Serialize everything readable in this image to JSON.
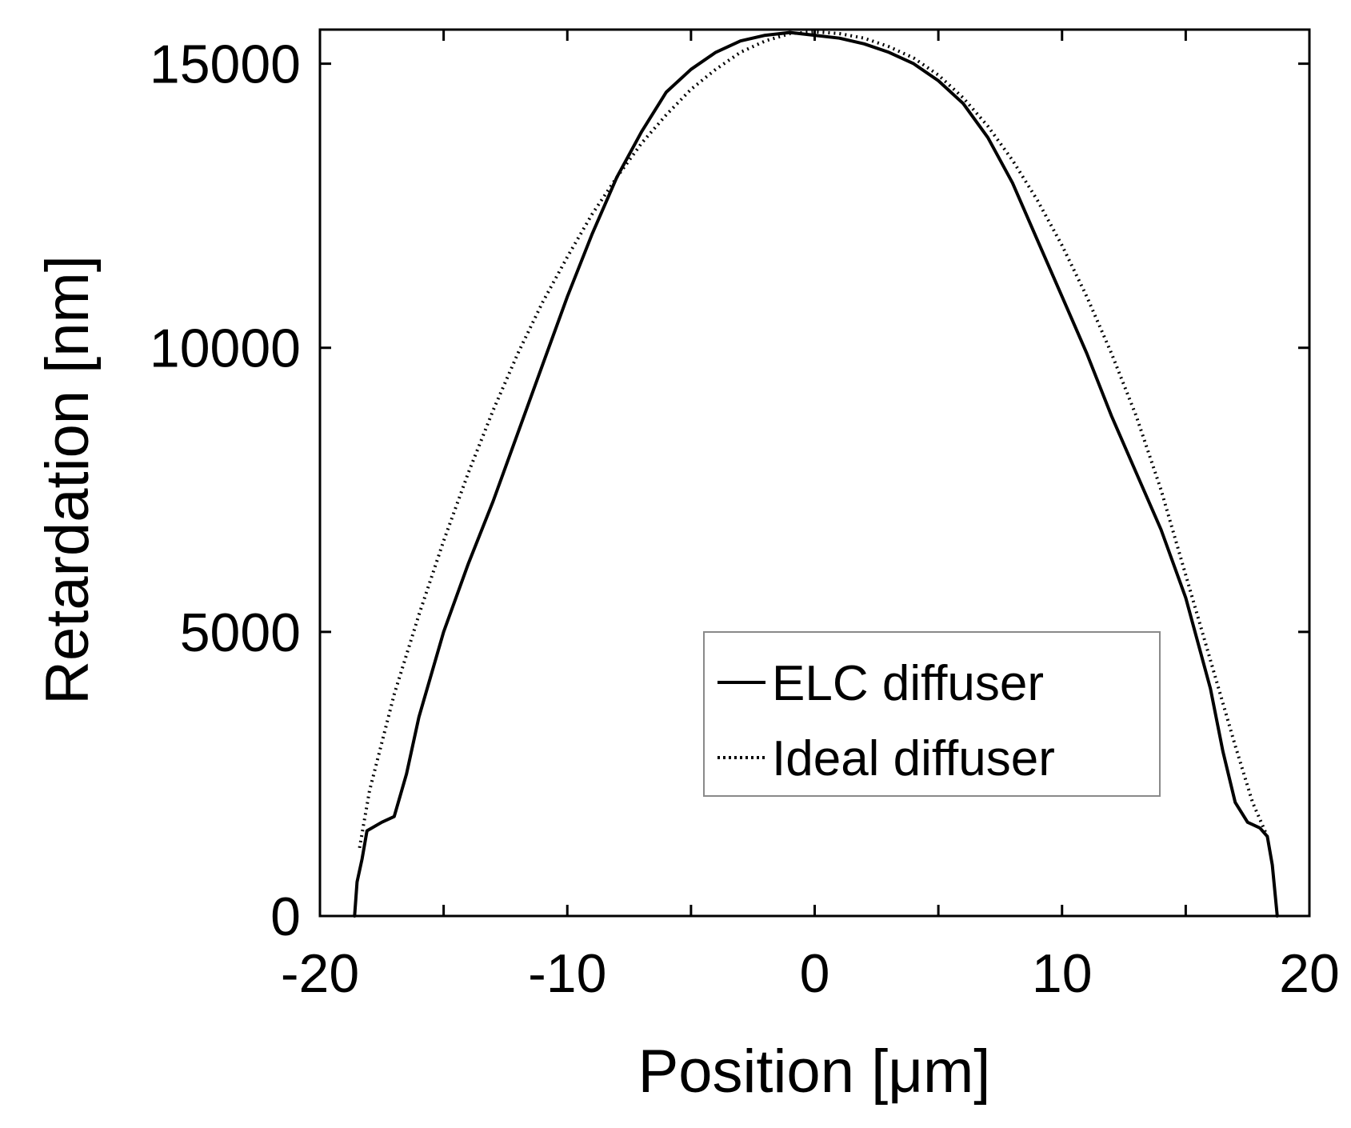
{
  "chart_data": {
    "type": "line",
    "xlabel": "Position [μm]",
    "ylabel": "Retardation [nm]",
    "xlim": [
      -20,
      20
    ],
    "ylim": [
      0,
      15600
    ],
    "xticks": [
      -20,
      -10,
      0,
      10,
      20
    ],
    "xtick_labels": [
      "-20",
      "-10",
      "0",
      "10",
      "20"
    ],
    "yticks": [
      0,
      5000,
      10000,
      15000
    ],
    "ytick_labels": [
      "0",
      "5000",
      "10000",
      "15000"
    ],
    "grid": false,
    "legend_position": "lower-right",
    "series": [
      {
        "name": "ELC diffuser",
        "style": "solid",
        "color": "#000000",
        "points": [
          [
            -18.6,
            0
          ],
          [
            -18.5,
            600
          ],
          [
            -18.3,
            1000
          ],
          [
            -18.1,
            1500
          ],
          [
            -17.5,
            1650
          ],
          [
            -17.0,
            1750
          ],
          [
            -16.5,
            2500
          ],
          [
            -16.0,
            3500
          ],
          [
            -15.0,
            5000
          ],
          [
            -14.0,
            6200
          ],
          [
            -13.0,
            7300
          ],
          [
            -12.0,
            8500
          ],
          [
            -11.0,
            9700
          ],
          [
            -10.0,
            10900
          ],
          [
            -9.0,
            12000
          ],
          [
            -8.0,
            13000
          ],
          [
            -7.0,
            13800
          ],
          [
            -6.0,
            14500
          ],
          [
            -5.0,
            14900
          ],
          [
            -4.0,
            15200
          ],
          [
            -3.0,
            15400
          ],
          [
            -2.0,
            15500
          ],
          [
            -1.0,
            15550
          ],
          [
            0.0,
            15500
          ],
          [
            1.0,
            15450
          ],
          [
            2.0,
            15350
          ],
          [
            3.0,
            15200
          ],
          [
            4.0,
            15000
          ],
          [
            5.0,
            14700
          ],
          [
            6.0,
            14300
          ],
          [
            7.0,
            13700
          ],
          [
            8.0,
            12900
          ],
          [
            9.0,
            11900
          ],
          [
            10.0,
            10900
          ],
          [
            11.0,
            9900
          ],
          [
            12.0,
            8800
          ],
          [
            13.0,
            7800
          ],
          [
            14.0,
            6800
          ],
          [
            15.0,
            5600
          ],
          [
            16.0,
            4000
          ],
          [
            16.5,
            2900
          ],
          [
            17.0,
            2000
          ],
          [
            17.5,
            1650
          ],
          [
            18.0,
            1550
          ],
          [
            18.3,
            1400
          ],
          [
            18.5,
            900
          ],
          [
            18.7,
            0
          ]
        ]
      },
      {
        "name": "Ideal diffuser",
        "style": "dotted",
        "color": "#000000",
        "points": [
          [
            -18.4,
            1200
          ],
          [
            -18.0,
            2200
          ],
          [
            -17.0,
            3900
          ],
          [
            -16.0,
            5300
          ],
          [
            -15.0,
            6600
          ],
          [
            -14.0,
            7800
          ],
          [
            -13.0,
            8900
          ],
          [
            -12.0,
            9900
          ],
          [
            -11.0,
            10800
          ],
          [
            -10.0,
            11600
          ],
          [
            -9.0,
            12350
          ],
          [
            -8.0,
            13000
          ],
          [
            -7.0,
            13600
          ],
          [
            -6.0,
            14100
          ],
          [
            -5.0,
            14550
          ],
          [
            -4.0,
            14900
          ],
          [
            -3.0,
            15200
          ],
          [
            -2.0,
            15400
          ],
          [
            -1.0,
            15530
          ],
          [
            0.0,
            15560
          ],
          [
            1.0,
            15530
          ],
          [
            2.0,
            15450
          ],
          [
            3.0,
            15300
          ],
          [
            4.0,
            15100
          ],
          [
            5.0,
            14800
          ],
          [
            6.0,
            14400
          ],
          [
            7.0,
            13900
          ],
          [
            8.0,
            13300
          ],
          [
            9.0,
            12600
          ],
          [
            10.0,
            11800
          ],
          [
            11.0,
            10900
          ],
          [
            12.0,
            9900
          ],
          [
            13.0,
            8800
          ],
          [
            14.0,
            7500
          ],
          [
            15.0,
            6000
          ],
          [
            16.0,
            4500
          ],
          [
            17.0,
            3000
          ],
          [
            17.7,
            2000
          ],
          [
            18.3,
            1400
          ]
        ]
      }
    ]
  }
}
